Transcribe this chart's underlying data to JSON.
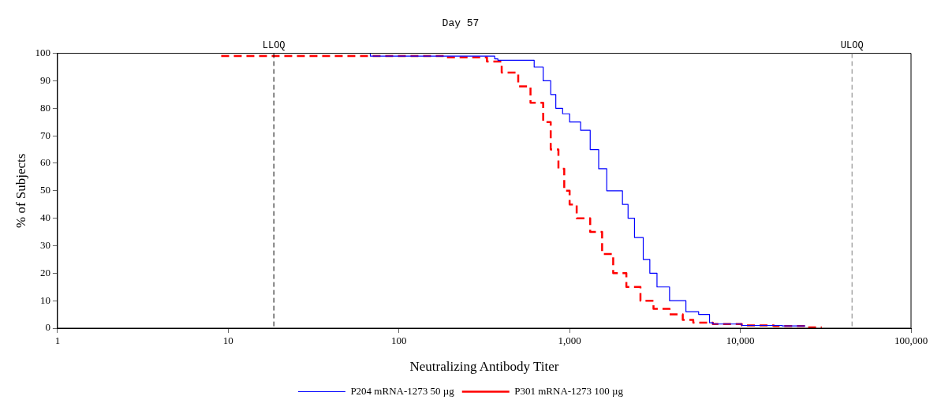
{
  "chart_data": {
    "type": "step",
    "title": "Day 57",
    "xlabel": "Neutralizing Antibody Titer",
    "ylabel": "% of Subjects",
    "log": "x",
    "xlim": [
      1,
      100000
    ],
    "ylim": [
      0,
      100
    ],
    "xticks": [
      1,
      10,
      100,
      {
        "value": 1000,
        "label": "1,000"
      },
      {
        "value": 10000,
        "label": "10,000"
      },
      {
        "value": 100000,
        "label": "100,000"
      }
    ],
    "yticks": [
      0,
      10,
      20,
      30,
      40,
      50,
      60,
      70,
      80,
      90,
      100
    ],
    "grid": false,
    "legend": "bottom",
    "marker": "none",
    "ref_lines": [
      {
        "axis": "x",
        "value": 18.5,
        "label": "LLOQ",
        "color": "#000000",
        "line_style": "dashed"
      },
      {
        "axis": "x",
        "value": 45118,
        "label": "ULOQ",
        "color": "#808080",
        "line_style": "dashed"
      }
    ],
    "series": [
      {
        "name": "P204 mRNA-1273 50 µg",
        "color": "#0000ff",
        "line_style": "solid",
        "x": [
          68,
          364,
          380,
          620,
          700,
          775,
          830,
          910,
          1000,
          1160,
          1320,
          1480,
          1650,
          2040,
          2200,
          2400,
          2700,
          2950,
          3250,
          3850,
          4800,
          5700,
          6600,
          6900,
          10200,
          17600,
          24000
        ],
        "values": [
          100,
          99,
          98,
          97.5,
          95,
          90,
          85,
          80,
          78,
          75,
          72,
          65,
          58,
          50,
          45,
          40,
          33,
          25,
          20,
          15,
          10,
          6,
          5,
          2,
          1.5,
          1,
          0.8
        ]
      },
      {
        "name": "P301 mRNA-1273 100 µg",
        "color": "#ff0000",
        "line_style": "dashed",
        "x": [
          9.1,
          190,
          328,
          400,
          500,
          590,
          700,
          775,
          860,
          930,
          1000,
          1100,
          1320,
          1550,
          1800,
          2150,
          2600,
          3100,
          3850,
          4600,
          5300,
          6900,
          10200,
          15700,
          24000,
          30000
        ],
        "values": [
          99,
          99,
          98.5,
          97,
          93,
          88,
          82,
          75,
          65,
          58,
          50,
          45,
          40,
          35,
          27,
          20,
          15,
          10,
          7,
          5,
          3,
          2,
          1.5,
          1,
          0.8,
          0.3
        ]
      }
    ]
  }
}
